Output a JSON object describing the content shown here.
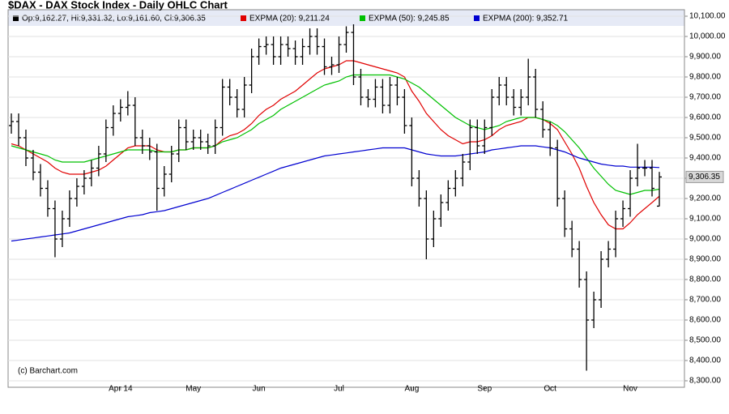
{
  "chart_data": {
    "type": "ohlc",
    "title": "$DAX - DAX Stock Index - Daily OHLC Chart",
    "ohlc_legend": "Op:9,162.27, Hi:9,331.32, Lo:9,161.60, Cl:9,306.35",
    "last_label": "9,306.35",
    "annotation": "(c) Barchart.com",
    "color": "#000000",
    "grid": true,
    "categories": [
      null,
      null,
      null,
      null,
      null,
      null,
      null,
      null,
      null,
      null,
      null,
      null,
      null,
      null,
      null,
      "Apr 14",
      null,
      null,
      null,
      null,
      null,
      null,
      null,
      null,
      null,
      "May",
      null,
      null,
      null,
      null,
      null,
      null,
      null,
      null,
      "Jun",
      null,
      null,
      null,
      null,
      null,
      null,
      null,
      null,
      null,
      null,
      "Jul",
      null,
      null,
      null,
      null,
      null,
      null,
      null,
      null,
      null,
      "Aug",
      null,
      null,
      null,
      null,
      null,
      null,
      null,
      null,
      null,
      "Sep",
      null,
      null,
      null,
      null,
      null,
      null,
      null,
      null,
      "Oct",
      null,
      null,
      null,
      null,
      null,
      null,
      null,
      null,
      null,
      null,
      "Nov",
      null,
      null,
      null,
      null
    ],
    "open": [
      9560,
      9580,
      9500,
      9400,
      9330,
      9250,
      9150,
      9000,
      9100,
      9200,
      9260,
      9300,
      9350,
      9420,
      9550,
      9620,
      9650,
      9660,
      9500,
      9460,
      9430,
      9250,
      9320,
      9420,
      9550,
      9480,
      9500,
      9480,
      9460,
      9550,
      9750,
      9700,
      9640,
      9760,
      9900,
      9950,
      9960,
      9900,
      9960,
      9940,
      9900,
      9950,
      10000,
      9950,
      9850,
      9860,
      9960,
      10020,
      9800,
      9700,
      9690,
      9750,
      9660,
      9760,
      9700,
      9560,
      9300,
      9200,
      9000,
      9100,
      9180,
      9250,
      9300,
      9380,
      9550,
      9460,
      9550,
      9700,
      9760,
      9700,
      9650,
      9700,
      9800,
      9640,
      9540,
      9450,
      9200,
      9050,
      8950,
      8800,
      8600,
      8700,
      8900,
      8950,
      9100,
      9150,
      9300,
      9350,
      9350,
      9162.27
    ],
    "high": [
      9620,
      9620,
      9540,
      9440,
      9370,
      9290,
      9190,
      9140,
      9240,
      9300,
      9340,
      9390,
      9460,
      9590,
      9660,
      9690,
      9730,
      9700,
      9540,
      9500,
      9470,
      9360,
      9460,
      9590,
      9590,
      9540,
      9540,
      9520,
      9590,
      9790,
      9790,
      9740,
      9800,
      9940,
      9990,
      10000,
      10000,
      10000,
      10000,
      9980,
      9990,
      10040,
      10040,
      9990,
      9900,
      10000,
      10050,
      10060,
      9840,
      9740,
      9790,
      9790,
      9800,
      9800,
      9740,
      9600,
      9340,
      9240,
      9140,
      9220,
      9290,
      9340,
      9420,
      9590,
      9590,
      9590,
      9740,
      9800,
      9800,
      9740,
      9740,
      9890,
      9840,
      9680,
      9580,
      9490,
      9240,
      9090,
      8990,
      8840,
      8740,
      8940,
      8990,
      9140,
      9190,
      9340,
      9470,
      9390,
      9390,
      9331.32
    ],
    "low": [
      9520,
      9460,
      9360,
      9290,
      9210,
      9110,
      8910,
      8960,
      9060,
      9160,
      9220,
      9260,
      9310,
      9380,
      9510,
      9580,
      9610,
      9460,
      9420,
      9390,
      9140,
      9210,
      9280,
      9380,
      9440,
      9440,
      9440,
      9420,
      9420,
      9510,
      9660,
      9600,
      9600,
      9720,
      9860,
      9910,
      9860,
      9860,
      9900,
      9860,
      9860,
      9910,
      9910,
      9810,
      9810,
      9820,
      9920,
      9760,
      9660,
      9650,
      9650,
      9620,
      9620,
      9660,
      9520,
      9260,
      9160,
      8900,
      8960,
      9060,
      9140,
      9210,
      9260,
      9340,
      9420,
      9420,
      9510,
      9660,
      9660,
      9610,
      9610,
      9660,
      9600,
      9500,
      9410,
      9160,
      9010,
      8910,
      8760,
      8350,
      8560,
      8660,
      8860,
      8910,
      9060,
      9110,
      9260,
      9310,
      9210,
      9161.6
    ],
    "close": [
      9580,
      9500,
      9400,
      9330,
      9250,
      9150,
      9000,
      9100,
      9200,
      9260,
      9300,
      9350,
      9420,
      9550,
      9620,
      9650,
      9660,
      9500,
      9460,
      9430,
      9250,
      9320,
      9420,
      9550,
      9480,
      9500,
      9480,
      9460,
      9550,
      9750,
      9700,
      9640,
      9760,
      9900,
      9950,
      9960,
      9900,
      9960,
      9940,
      9900,
      9950,
      10000,
      9950,
      9850,
      9860,
      9960,
      10020,
      9800,
      9700,
      9690,
      9750,
      9660,
      9760,
      9700,
      9560,
      9300,
      9200,
      9000,
      9100,
      9180,
      9250,
      9300,
      9380,
      9550,
      9460,
      9550,
      9700,
      9760,
      9700,
      9650,
      9700,
      9800,
      9640,
      9540,
      9450,
      9200,
      9050,
      8950,
      8800,
      8600,
      8700,
      8900,
      8950,
      9100,
      9150,
      9300,
      9350,
      9350,
      9250,
      9306.35
    ],
    "series": [
      {
        "name": "EXPMA (20): 9,211.24",
        "color": "#e00000",
        "values": [
          9470,
          9460,
          9440,
          9420,
          9400,
          9380,
          9350,
          9330,
          9320,
          9320,
          9320,
          9330,
          9340,
          9360,
          9390,
          9420,
          9450,
          9460,
          9460,
          9460,
          9440,
          9430,
          9430,
          9440,
          9440,
          9450,
          9450,
          9450,
          9460,
          9490,
          9510,
          9520,
          9540,
          9570,
          9610,
          9640,
          9660,
          9690,
          9710,
          9730,
          9760,
          9790,
          9820,
          9840,
          9850,
          9860,
          9880,
          9880,
          9870,
          9860,
          9850,
          9840,
          9830,
          9820,
          9800,
          9730,
          9680,
          9620,
          9580,
          9540,
          9510,
          9490,
          9470,
          9480,
          9480,
          9490,
          9510,
          9540,
          9560,
          9570,
          9580,
          9600,
          9600,
          9590,
          9570,
          9540,
          9480,
          9420,
          9350,
          9260,
          9180,
          9120,
          9070,
          9050,
          9050,
          9080,
          9120,
          9150,
          9180,
          9211.24
        ]
      },
      {
        "name": "EXPMA (50): 9,245.85",
        "color": "#00c000",
        "values": [
          9460,
          9450,
          9440,
          9430,
          9420,
          9410,
          9390,
          9380,
          9380,
          9380,
          9380,
          9390,
          9400,
          9410,
          9420,
          9430,
          9440,
          9440,
          9440,
          9440,
          9430,
          9430,
          9430,
          9440,
          9440,
          9450,
          9450,
          9450,
          9460,
          9480,
          9490,
          9500,
          9520,
          9540,
          9570,
          9590,
          9610,
          9640,
          9660,
          9680,
          9700,
          9720,
          9740,
          9760,
          9770,
          9780,
          9800,
          9810,
          9810,
          9810,
          9810,
          9810,
          9810,
          9800,
          9790,
          9770,
          9750,
          9720,
          9690,
          9660,
          9630,
          9600,
          9580,
          9560,
          9550,
          9540,
          9550,
          9560,
          9580,
          9590,
          9600,
          9600,
          9600,
          9590,
          9580,
          9560,
          9530,
          9490,
          9450,
          9400,
          9350,
          9310,
          9270,
          9240,
          9230,
          9220,
          9230,
          9240,
          9240,
          9245.85
        ]
      },
      {
        "name": "EXPMA (200): 9,352.71",
        "color": "#0000d0",
        "values": [
          8990,
          8995,
          9000,
          9005,
          9010,
          9015,
          9020,
          9025,
          9030,
          9040,
          9050,
          9060,
          9070,
          9080,
          9090,
          9100,
          9110,
          9115,
          9120,
          9130,
          9135,
          9140,
          9150,
          9160,
          9170,
          9180,
          9190,
          9200,
          9215,
          9230,
          9245,
          9260,
          9275,
          9290,
          9305,
          9320,
          9335,
          9350,
          9360,
          9370,
          9380,
          9390,
          9400,
          9410,
          9415,
          9420,
          9425,
          9430,
          9435,
          9440,
          9445,
          9450,
          9450,
          9450,
          9450,
          9440,
          9430,
          9420,
          9415,
          9410,
          9410,
          9410,
          9415,
          9420,
          9425,
          9430,
          9440,
          9445,
          9450,
          9455,
          9460,
          9460,
          9460,
          9455,
          9450,
          9440,
          9430,
          9415,
          9400,
          9390,
          9380,
          9370,
          9365,
          9360,
          9360,
          9355,
          9355,
          9355,
          9355,
          9352.71
        ]
      }
    ],
    "ylim": [
      8300,
      10100
    ],
    "yticks": [
      {
        "value": 8300,
        "label": "8,300.00"
      },
      {
        "value": 8400,
        "label": "8,400.00"
      },
      {
        "value": 8500,
        "label": "8,500.00"
      },
      {
        "value": 8600,
        "label": "8,600.00"
      },
      {
        "value": 8700,
        "label": "8,700.00"
      },
      {
        "value": 8800,
        "label": "8,800.00"
      },
      {
        "value": 8900,
        "label": "8,900.00"
      },
      {
        "value": 9000,
        "label": "9,000.00"
      },
      {
        "value": 9100,
        "label": "9,100.00"
      },
      {
        "value": 9200,
        "label": "9,200.00"
      },
      {
        "value": 9300,
        "label": "9,300.00"
      },
      {
        "value": 9400,
        "label": "9,400.00"
      },
      {
        "value": 9500,
        "label": "9,500.00"
      },
      {
        "value": 9600,
        "label": "9,600.00"
      },
      {
        "value": 9700,
        "label": "9,700.00"
      },
      {
        "value": 9800,
        "label": "9,800.00"
      },
      {
        "value": 9900,
        "label": "9,900.00"
      },
      {
        "value": 10000,
        "label": "10,000.00"
      },
      {
        "value": 10100,
        "label": "10,100.00"
      }
    ]
  }
}
